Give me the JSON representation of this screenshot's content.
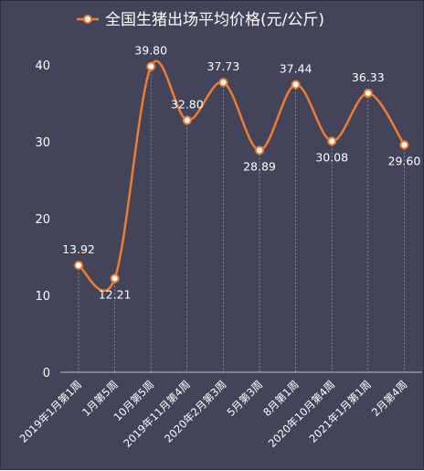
{
  "chart_data": {
    "type": "line",
    "title": "全国生猪出场平均价格(元/公斤)",
    "categories": [
      "2019年1月第1周",
      "1月第5周",
      "10月第5周",
      "2019年11月第4周",
      "2020年2月第3周",
      "5月第3周",
      "8月第1周",
      "2020年10月第4周",
      "2021年1月第1周",
      "2月第4周"
    ],
    "series": [
      {
        "name": "全国生猪出场平均价格(元/公斤)",
        "values": [
          13.92,
          12.21,
          39.8,
          32.8,
          37.73,
          28.89,
          37.44,
          30.08,
          36.33,
          29.6
        ],
        "labels": [
          "13.92",
          "12.21",
          "39.80",
          "32.80",
          "37.73",
          "28.89",
          "37.44",
          "30.08",
          "36.33",
          "29.60"
        ]
      }
    ],
    "ylim": [
      0,
      40
    ],
    "yticks": [
      "0",
      "10",
      "20",
      "30",
      "40"
    ],
    "xlabel": "",
    "ylabel": "",
    "legend_position": "top",
    "grid": false,
    "smooth": true,
    "colors": {
      "background": "#434359",
      "line": "#ed7d31",
      "marker_fill": "#ffffff",
      "text": "#ffffff",
      "axis": "#bfbfbf",
      "drop_lines": "#9a9aaa"
    }
  }
}
